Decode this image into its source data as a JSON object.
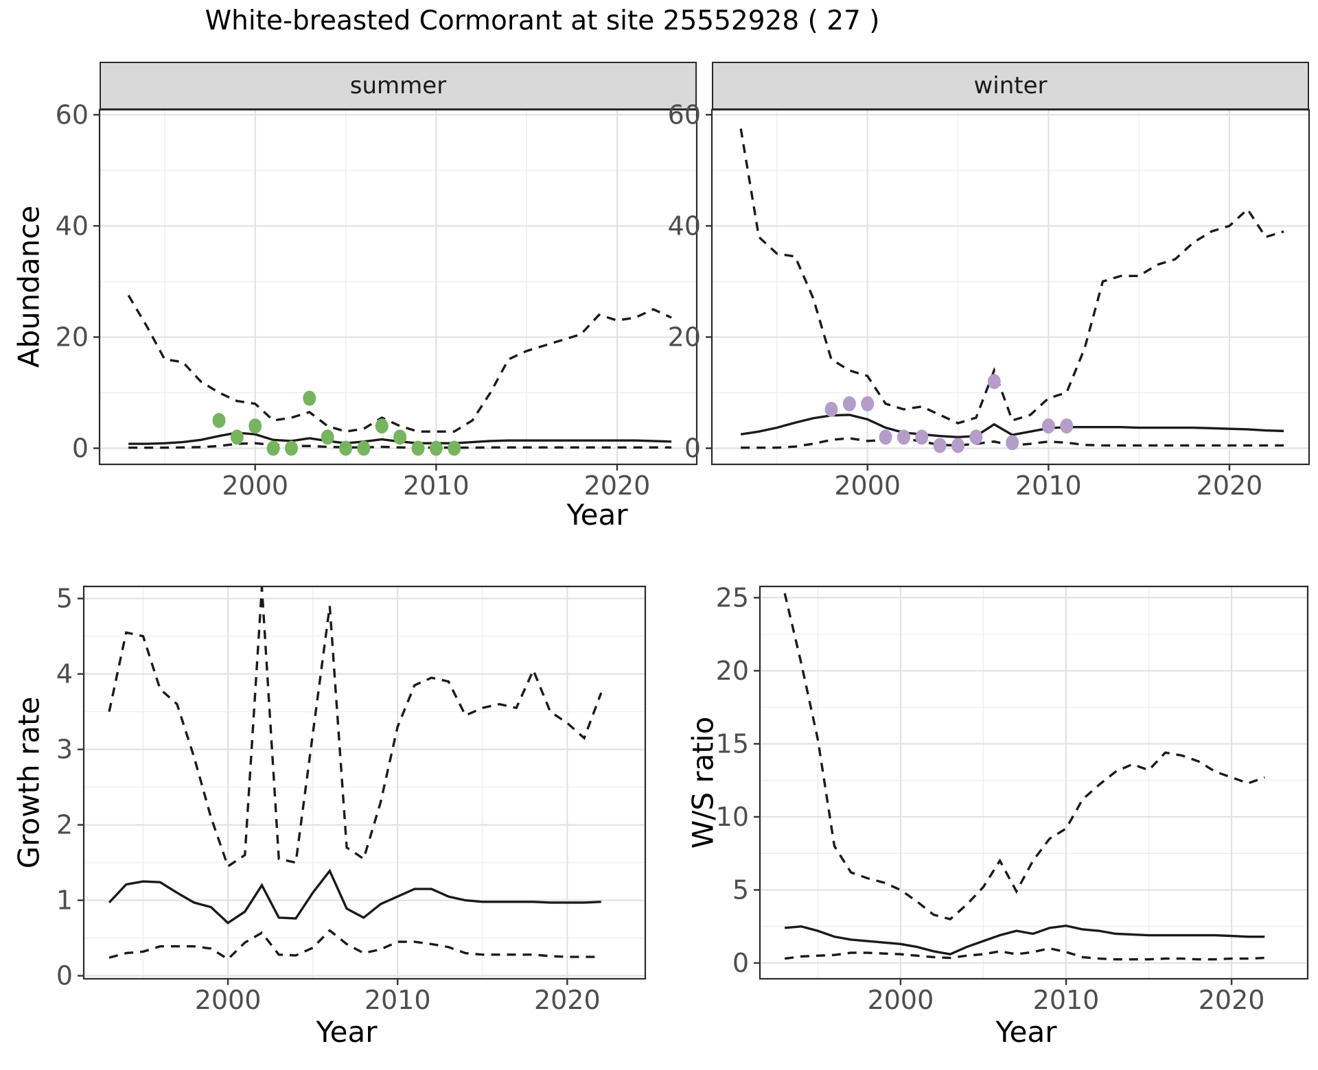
{
  "title": "White-breasted Cormorant at site 25552928 ( 27 )",
  "colors": {
    "line": "#1a1a1a",
    "summer_point": "#76b45e",
    "winter_point": "#b59cc9",
    "grid_major": "#e2e2e2",
    "grid_minor": "#f0f0f0",
    "axis_text": "#4d4d4d",
    "strip_bg": "#d9d9d9",
    "panel_border": "#2a2a2a"
  },
  "chart_data": [
    {
      "panel_key": "summer",
      "type": "line",
      "facet_label": "summer",
      "xlabel": "Year",
      "ylabel": "Abundance",
      "xlim": [
        1991.4,
        2024.4
      ],
      "ylim": [
        -2.9,
        60.9
      ],
      "x_ticks": [
        2000,
        2010,
        2020
      ],
      "x_minor": [
        1995,
        2005,
        2015
      ],
      "y_ticks": [
        0,
        20,
        40,
        60
      ],
      "y_minor": [
        10,
        30,
        50
      ],
      "years": [
        1993,
        1994,
        1995,
        1996,
        1997,
        1998,
        1999,
        2000,
        2001,
        2002,
        2003,
        2004,
        2005,
        2006,
        2007,
        2008,
        2009,
        2010,
        2011,
        2012,
        2013,
        2014,
        2015,
        2016,
        2017,
        2018,
        2019,
        2020,
        2021,
        2022,
        2023
      ],
      "series": [
        {
          "role": "upper_ci",
          "style": "dashed",
          "values": [
            27.5,
            22,
            16,
            15.5,
            12,
            10,
            8.5,
            8,
            5,
            5.5,
            6.5,
            4,
            3,
            3.5,
            5.5,
            4,
            3,
            3,
            3,
            5,
            10,
            16,
            17.5,
            18.5,
            19.5,
            20.5,
            24,
            23,
            23.5,
            25,
            23.5
          ]
        },
        {
          "role": "median",
          "style": "solid",
          "values": [
            0.8,
            0.8,
            0.9,
            1.1,
            1.5,
            2.2,
            2.8,
            2.5,
            1.5,
            1.3,
            1.8,
            1.3,
            0.9,
            1.2,
            1.6,
            1.2,
            0.9,
            0.9,
            0.9,
            1.1,
            1.3,
            1.4,
            1.4,
            1.4,
            1.4,
            1.4,
            1.4,
            1.4,
            1.4,
            1.3,
            1.2
          ]
        },
        {
          "role": "lower_ci",
          "style": "dashed",
          "values": [
            0.1,
            0.1,
            0.1,
            0.15,
            0.2,
            0.4,
            0.8,
            0.9,
            0.6,
            0.4,
            0.4,
            0.25,
            0.15,
            0.15,
            0.25,
            0.15,
            0.1,
            0.1,
            0.1,
            0.1,
            0.15,
            0.15,
            0.15,
            0.15,
            0.15,
            0.15,
            0.15,
            0.15,
            0.15,
            0.15,
            0.15
          ]
        }
      ],
      "points": {
        "label": "observed abundance",
        "color": "#76b45e",
        "data": [
          [
            1998,
            5
          ],
          [
            1999,
            2
          ],
          [
            2000,
            4
          ],
          [
            2001,
            0
          ],
          [
            2002,
            0
          ],
          [
            2003,
            9
          ],
          [
            2004,
            2
          ],
          [
            2005,
            0
          ],
          [
            2006,
            0
          ],
          [
            2007,
            4
          ],
          [
            2008,
            2
          ],
          [
            2009,
            0
          ],
          [
            2010,
            0
          ],
          [
            2011,
            0
          ]
        ]
      }
    },
    {
      "panel_key": "winter",
      "type": "line",
      "facet_label": "winter",
      "xlabel": "Year",
      "ylabel": "Abundance",
      "xlim": [
        1991.4,
        2024.4
      ],
      "ylim": [
        -2.9,
        60.9
      ],
      "x_ticks": [
        2000,
        2010,
        2020
      ],
      "x_minor": [
        1995,
        2005,
        2015
      ],
      "y_ticks": [
        0,
        20,
        40,
        60
      ],
      "y_minor": [
        10,
        30,
        50
      ],
      "years": [
        1993,
        1994,
        1995,
        1996,
        1997,
        1998,
        1999,
        2000,
        2001,
        2002,
        2003,
        2004,
        2005,
        2006,
        2007,
        2008,
        2009,
        2010,
        2011,
        2012,
        2013,
        2014,
        2015,
        2016,
        2017,
        2018,
        2019,
        2020,
        2021,
        2022,
        2023
      ],
      "series": [
        {
          "role": "upper_ci",
          "style": "dashed",
          "values": [
            57.5,
            38,
            35,
            34.5,
            27,
            16,
            14,
            13,
            8,
            7,
            7.5,
            6,
            4.5,
            5.5,
            14,
            5,
            6,
            9,
            10,
            18,
            30,
            31,
            31,
            33,
            34,
            37,
            39,
            40,
            43,
            38,
            39
          ]
        },
        {
          "role": "median",
          "style": "solid",
          "values": [
            2.5,
            3,
            3.7,
            4.6,
            5.4,
            5.9,
            6,
            5.2,
            3.7,
            2.8,
            2.5,
            2.2,
            2,
            2.2,
            4.3,
            2.4,
            3,
            3.6,
            3.8,
            3.8,
            3.8,
            3.8,
            3.7,
            3.7,
            3.7,
            3.7,
            3.6,
            3.5,
            3.4,
            3.2,
            3.1
          ]
        },
        {
          "role": "lower_ci",
          "style": "dashed",
          "values": [
            0.1,
            0.1,
            0.1,
            0.3,
            0.8,
            1.5,
            1.8,
            1.3,
            1.5,
            1.8,
            1.2,
            0.6,
            0.5,
            0.8,
            1.2,
            0.5,
            0.8,
            1.2,
            1.0,
            0.6,
            0.5,
            0.5,
            0.5,
            0.5,
            0.5,
            0.5,
            0.5,
            0.5,
            0.5,
            0.5,
            0.5
          ]
        }
      ],
      "points": {
        "label": "observed abundance",
        "color": "#b59cc9",
        "data": [
          [
            1998,
            7
          ],
          [
            1999,
            8
          ],
          [
            2000,
            8
          ],
          [
            2001,
            2
          ],
          [
            2002,
            2
          ],
          [
            2003,
            2
          ],
          [
            2004,
            0.5
          ],
          [
            2005,
            0.5
          ],
          [
            2006,
            2
          ],
          [
            2007,
            12
          ],
          [
            2008,
            1
          ],
          [
            2010,
            4
          ],
          [
            2011,
            4
          ]
        ]
      }
    },
    {
      "panel_key": "growth",
      "type": "line",
      "facet_label": "",
      "xlabel": "Year",
      "ylabel": "Growth rate",
      "xlim": [
        1991.5,
        2024.6
      ],
      "ylim": [
        -0.04,
        5.16
      ],
      "x_ticks": [
        2000,
        2010,
        2020
      ],
      "x_minor": [
        1995,
        2005,
        2015
      ],
      "y_ticks": [
        0,
        1,
        2,
        3,
        4,
        5
      ],
      "y_minor": [
        0.5,
        1.5,
        2.5,
        3.5,
        4.5
      ],
      "years": [
        1993,
        1994,
        1995,
        1996,
        1997,
        1998,
        1999,
        2000,
        2001,
        2002,
        2003,
        2004,
        2005,
        2006,
        2007,
        2008,
        2009,
        2010,
        2011,
        2012,
        2013,
        2014,
        2015,
        2016,
        2017,
        2018,
        2019,
        2020,
        2021,
        2022
      ],
      "series": [
        {
          "role": "upper_ci",
          "style": "dashed",
          "values": [
            3.5,
            4.55,
            4.5,
            3.8,
            3.6,
            2.9,
            2.1,
            1.45,
            1.6,
            5.15,
            1.55,
            1.5,
            3.2,
            4.9,
            1.7,
            1.55,
            2.3,
            3.3,
            3.85,
            3.95,
            3.9,
            3.45,
            3.55,
            3.6,
            3.55,
            4.05,
            3.5,
            3.35,
            3.15,
            3.75
          ]
        },
        {
          "role": "median",
          "style": "solid",
          "values": [
            0.97,
            1.21,
            1.25,
            1.24,
            1.1,
            0.97,
            0.91,
            0.7,
            0.85,
            1.2,
            0.77,
            0.76,
            1.1,
            1.39,
            0.89,
            0.77,
            0.95,
            1.05,
            1.15,
            1.15,
            1.05,
            1.0,
            0.98,
            0.98,
            0.98,
            0.98,
            0.97,
            0.97,
            0.97,
            0.98
          ]
        },
        {
          "role": "lower_ci",
          "style": "dashed",
          "values": [
            0.24,
            0.3,
            0.32,
            0.39,
            0.39,
            0.39,
            0.36,
            0.22,
            0.44,
            0.57,
            0.28,
            0.27,
            0.37,
            0.6,
            0.42,
            0.3,
            0.35,
            0.45,
            0.45,
            0.42,
            0.38,
            0.3,
            0.28,
            0.28,
            0.28,
            0.28,
            0.26,
            0.25,
            0.25,
            0.25
          ]
        }
      ]
    },
    {
      "panel_key": "ws",
      "type": "line",
      "facet_label": "",
      "xlabel": "Year",
      "ylabel": "W/S ratio",
      "xlim": [
        1991.5,
        2024.6
      ],
      "ylim": [
        -1.08,
        25.77
      ],
      "x_ticks": [
        2000,
        2010,
        2020
      ],
      "x_minor": [
        1995,
        2005,
        2015
      ],
      "y_ticks": [
        0,
        5,
        10,
        15,
        20,
        25
      ],
      "y_minor": [
        2.5,
        7.5,
        12.5,
        17.5,
        22.5
      ],
      "years": [
        1993,
        1994,
        1995,
        1996,
        1997,
        1998,
        1999,
        2000,
        2001,
        2002,
        2003,
        2004,
        2005,
        2006,
        2007,
        2008,
        2009,
        2010,
        2011,
        2012,
        2013,
        2014,
        2015,
        2016,
        2017,
        2018,
        2019,
        2020,
        2021,
        2022
      ],
      "series": [
        {
          "role": "upper_ci",
          "style": "dashed",
          "values": [
            25.3,
            20.5,
            15.3,
            8,
            6.2,
            5.8,
            5.5,
            5,
            4.2,
            3.3,
            3,
            4,
            5.2,
            7,
            4.9,
            7,
            8.5,
            9.2,
            11.2,
            12.2,
            13.1,
            13.6,
            13.2,
            14.4,
            14.2,
            13.8,
            13.1,
            12.7,
            12.3,
            12.7
          ]
        },
        {
          "role": "median",
          "style": "solid",
          "values": [
            2.4,
            2.5,
            2.2,
            1.8,
            1.6,
            1.5,
            1.4,
            1.3,
            1.1,
            0.8,
            0.6,
            1.1,
            1.5,
            1.9,
            2.2,
            2.0,
            2.4,
            2.55,
            2.3,
            2.2,
            2.0,
            1.95,
            1.9,
            1.9,
            1.9,
            1.9,
            1.9,
            1.85,
            1.8,
            1.8
          ]
        },
        {
          "role": "lower_ci",
          "style": "dashed",
          "values": [
            0.3,
            0.45,
            0.5,
            0.55,
            0.7,
            0.7,
            0.65,
            0.6,
            0.5,
            0.4,
            0.35,
            0.5,
            0.6,
            0.8,
            0.6,
            0.75,
            1.0,
            0.75,
            0.4,
            0.3,
            0.25,
            0.25,
            0.25,
            0.3,
            0.3,
            0.25,
            0.25,
            0.3,
            0.3,
            0.35
          ]
        }
      ]
    }
  ]
}
